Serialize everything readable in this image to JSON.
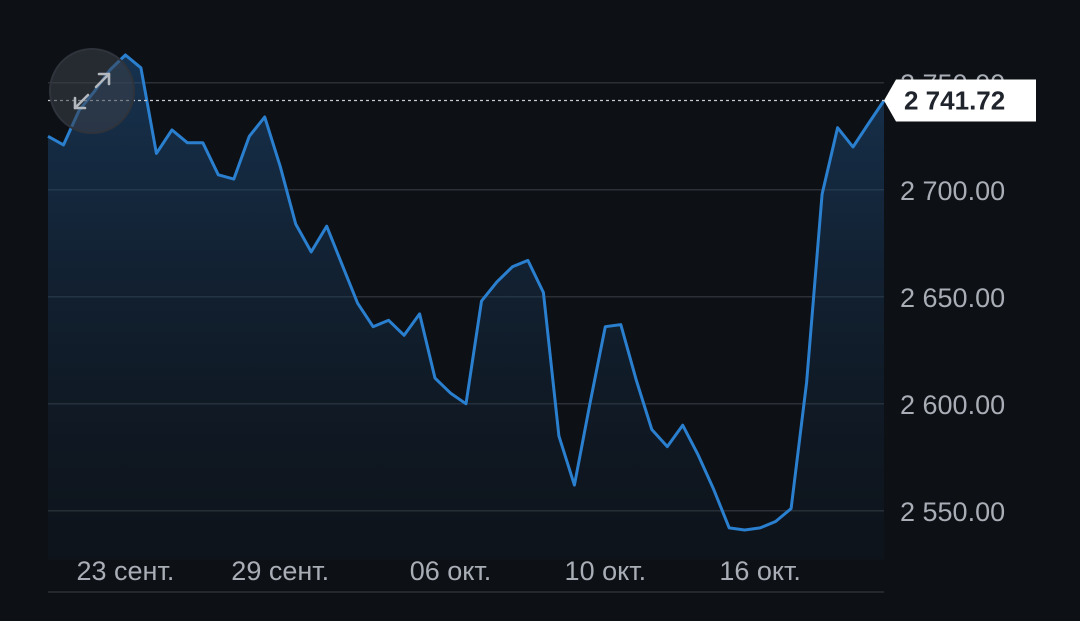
{
  "colors": {
    "background": "#0d1015",
    "line": "#2a7fcf",
    "grid": "#2b2f36",
    "axis_text": "#a9adb5",
    "last_value_bg": "#ffffff",
    "last_value_text": "#20242c"
  },
  "icons": {
    "expand": "expand-arrows-icon"
  },
  "chart_data": {
    "type": "area",
    "y_axis_position": "right",
    "ylim": [
      2527,
      2770
    ],
    "y_ticks": [
      2550,
      2600,
      2650,
      2700,
      2750
    ],
    "y_tick_labels": [
      "2 550.00",
      "2 600.00",
      "2 650.00",
      "2 700.00",
      "2 750.00"
    ],
    "x_tick_labels": [
      "23 сент.",
      "29 сент.",
      "06 окт.",
      "10 окт.",
      "16 окт."
    ],
    "x_tick_indices": [
      5,
      15,
      26,
      36,
      46
    ],
    "last_value": 2741.72,
    "last_value_label": "2 741.72",
    "grid": true,
    "values": [
      2725,
      2721,
      2737,
      2746,
      2756,
      2763,
      2757,
      2717,
      2728,
      2722,
      2722,
      2707,
      2705,
      2725,
      2734,
      2711,
      2684,
      2671,
      2683,
      2665,
      2647,
      2636,
      2639,
      2632,
      2642,
      2612,
      2605,
      2600,
      2648,
      2657,
      2664,
      2667,
      2652,
      2585,
      2562,
      2600,
      2636,
      2637,
      2611,
      2588,
      2580,
      2590,
      2576,
      2560,
      2542,
      2541,
      2542,
      2545,
      2551,
      2610,
      2698,
      2729,
      2720,
      2731,
      2741.72
    ]
  }
}
